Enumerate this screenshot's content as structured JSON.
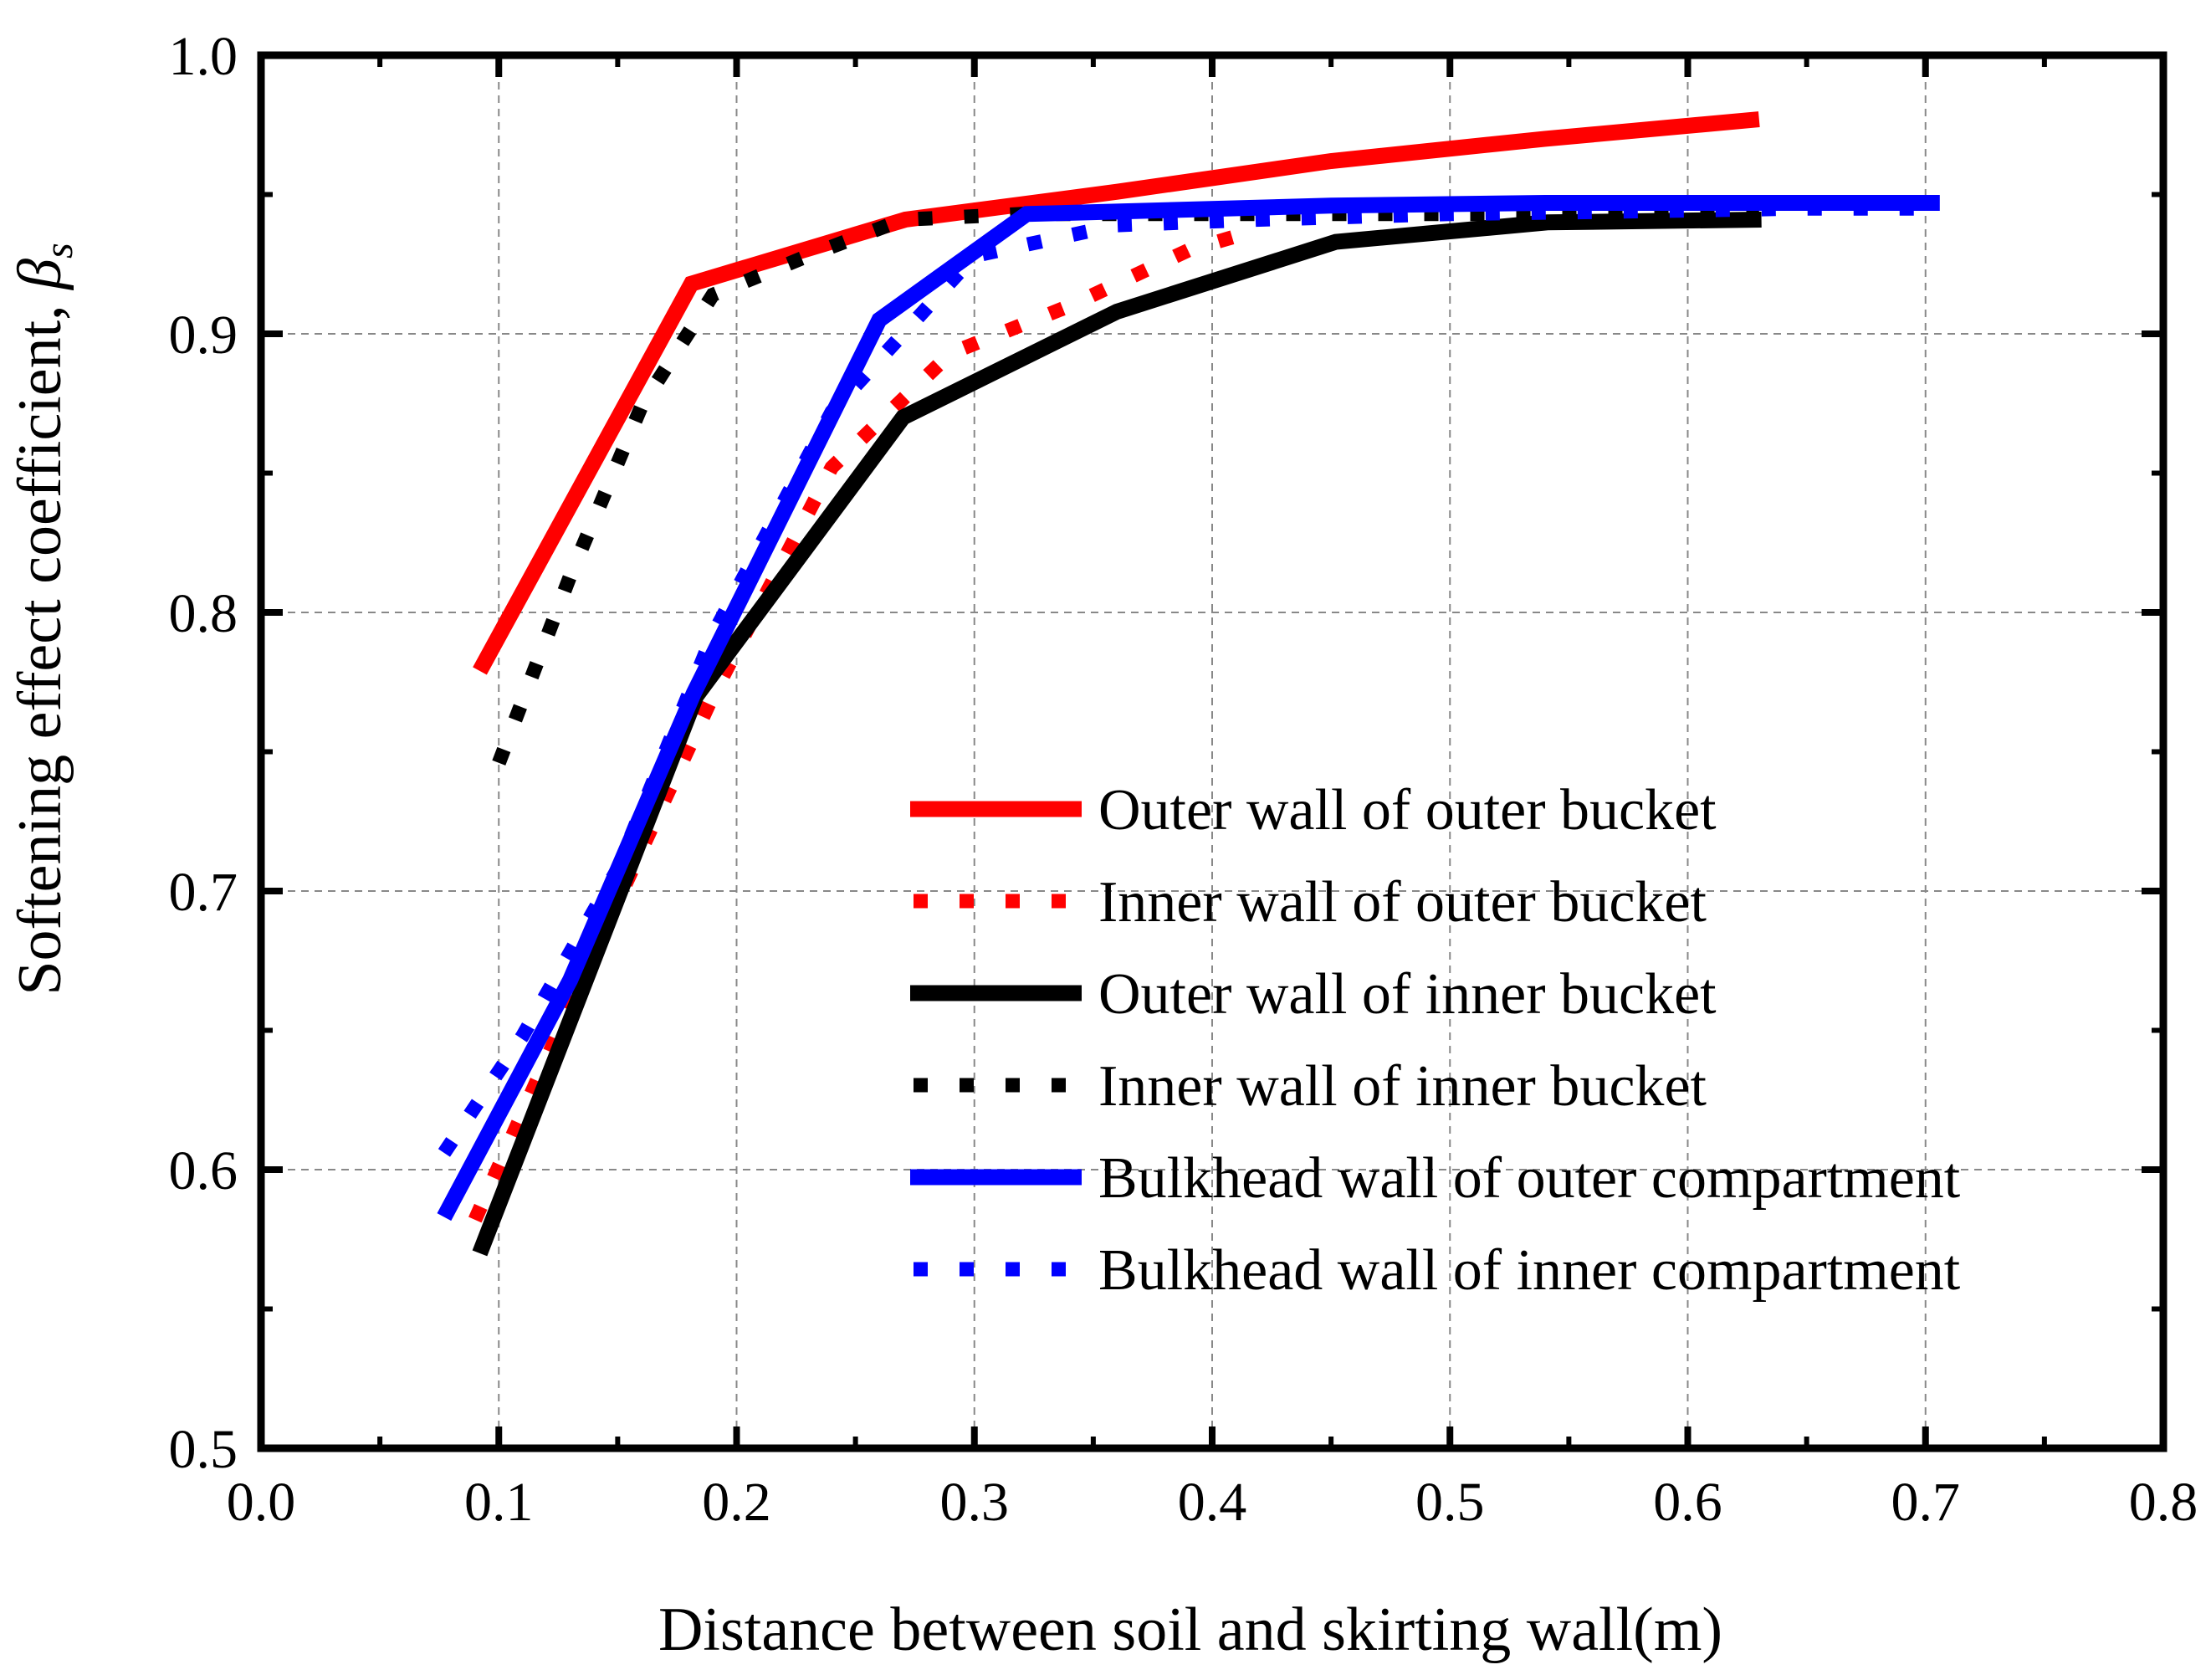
{
  "chart_data": {
    "type": "line",
    "title": "",
    "xlabel": "Distance between soil and skirting wall(m)",
    "ylabel": "Softening effect coefficient, ",
    "ylabel_symbol": "β",
    "ylabel_subscript": "s",
    "xlim": [
      0.0,
      0.8
    ],
    "ylim": [
      0.5,
      1.0
    ],
    "xticks": [
      0.0,
      0.1,
      0.2,
      0.3,
      0.4,
      0.5,
      0.6,
      0.7,
      0.8
    ],
    "yticks": [
      0.5,
      0.6,
      0.7,
      0.8,
      0.9,
      1.0
    ],
    "xtick_labels": [
      "0.0",
      "0.1",
      "0.2",
      "0.3",
      "0.4",
      "0.5",
      "0.6",
      "0.7",
      "0.8"
    ],
    "ytick_labels": [
      "0.5",
      "0.6",
      "0.7",
      "0.8",
      "0.9",
      "1.0"
    ],
    "grid": true,
    "legend_position": "lower-right",
    "series": [
      {
        "name": "Outer wall of outer bucket",
        "color": "#ff0000",
        "style": "solid",
        "x": [
          0.092,
          0.181,
          0.271,
          0.36,
          0.45,
          0.54,
          0.63
        ],
        "y": [
          0.779,
          0.918,
          0.941,
          0.951,
          0.962,
          0.97,
          0.977
        ]
      },
      {
        "name": "Inner wall of outer bucket",
        "color": "#ff0000",
        "style": "dotted",
        "x": [
          0.09,
          0.14,
          0.19,
          0.24,
          0.29,
          0.34,
          0.39,
          0.41
        ],
        "y": [
          0.582,
          0.678,
          0.77,
          0.852,
          0.893,
          0.91,
          0.93,
          0.935
        ]
      },
      {
        "name": "Outer wall of inner bucket",
        "color": "#000000",
        "style": "solid",
        "x": [
          0.092,
          0.183,
          0.27,
          0.36,
          0.452,
          0.541,
          0.631
        ],
        "y": [
          0.57,
          0.77,
          0.87,
          0.908,
          0.933,
          0.94,
          0.941
        ]
      },
      {
        "name": "Inner wall of inner bucket",
        "color": "#000000",
        "style": "dotted",
        "x": [
          0.1,
          0.13,
          0.16,
          0.19,
          0.23,
          0.27,
          0.32,
          0.37,
          0.43,
          0.5,
          0.57,
          0.63
        ],
        "y": [
          0.746,
          0.813,
          0.874,
          0.914,
          0.928,
          0.941,
          0.943,
          0.943,
          0.943,
          0.943,
          0.943,
          0.943
        ]
      },
      {
        "name": "Bulkhead wall of outer compartment",
        "color": "#0000ff",
        "style": "solid",
        "x": [
          0.077,
          0.13,
          0.182,
          0.26,
          0.322,
          0.45,
          0.54,
          0.63,
          0.706
        ],
        "y": [
          0.583,
          0.668,
          0.771,
          0.905,
          0.943,
          0.946,
          0.947,
          0.947,
          0.947
        ]
      },
      {
        "name": "Bulkhead wall of inner compartment",
        "color": "#0000ff",
        "style": "dotted",
        "x": [
          0.077,
          0.11,
          0.15,
          0.19,
          0.24,
          0.3,
          0.36,
          0.42,
          0.5,
          0.58,
          0.65,
          0.706
        ],
        "y": [
          0.606,
          0.648,
          0.708,
          0.792,
          0.872,
          0.928,
          0.939,
          0.941,
          0.943,
          0.944,
          0.945,
          0.945
        ]
      }
    ]
  }
}
